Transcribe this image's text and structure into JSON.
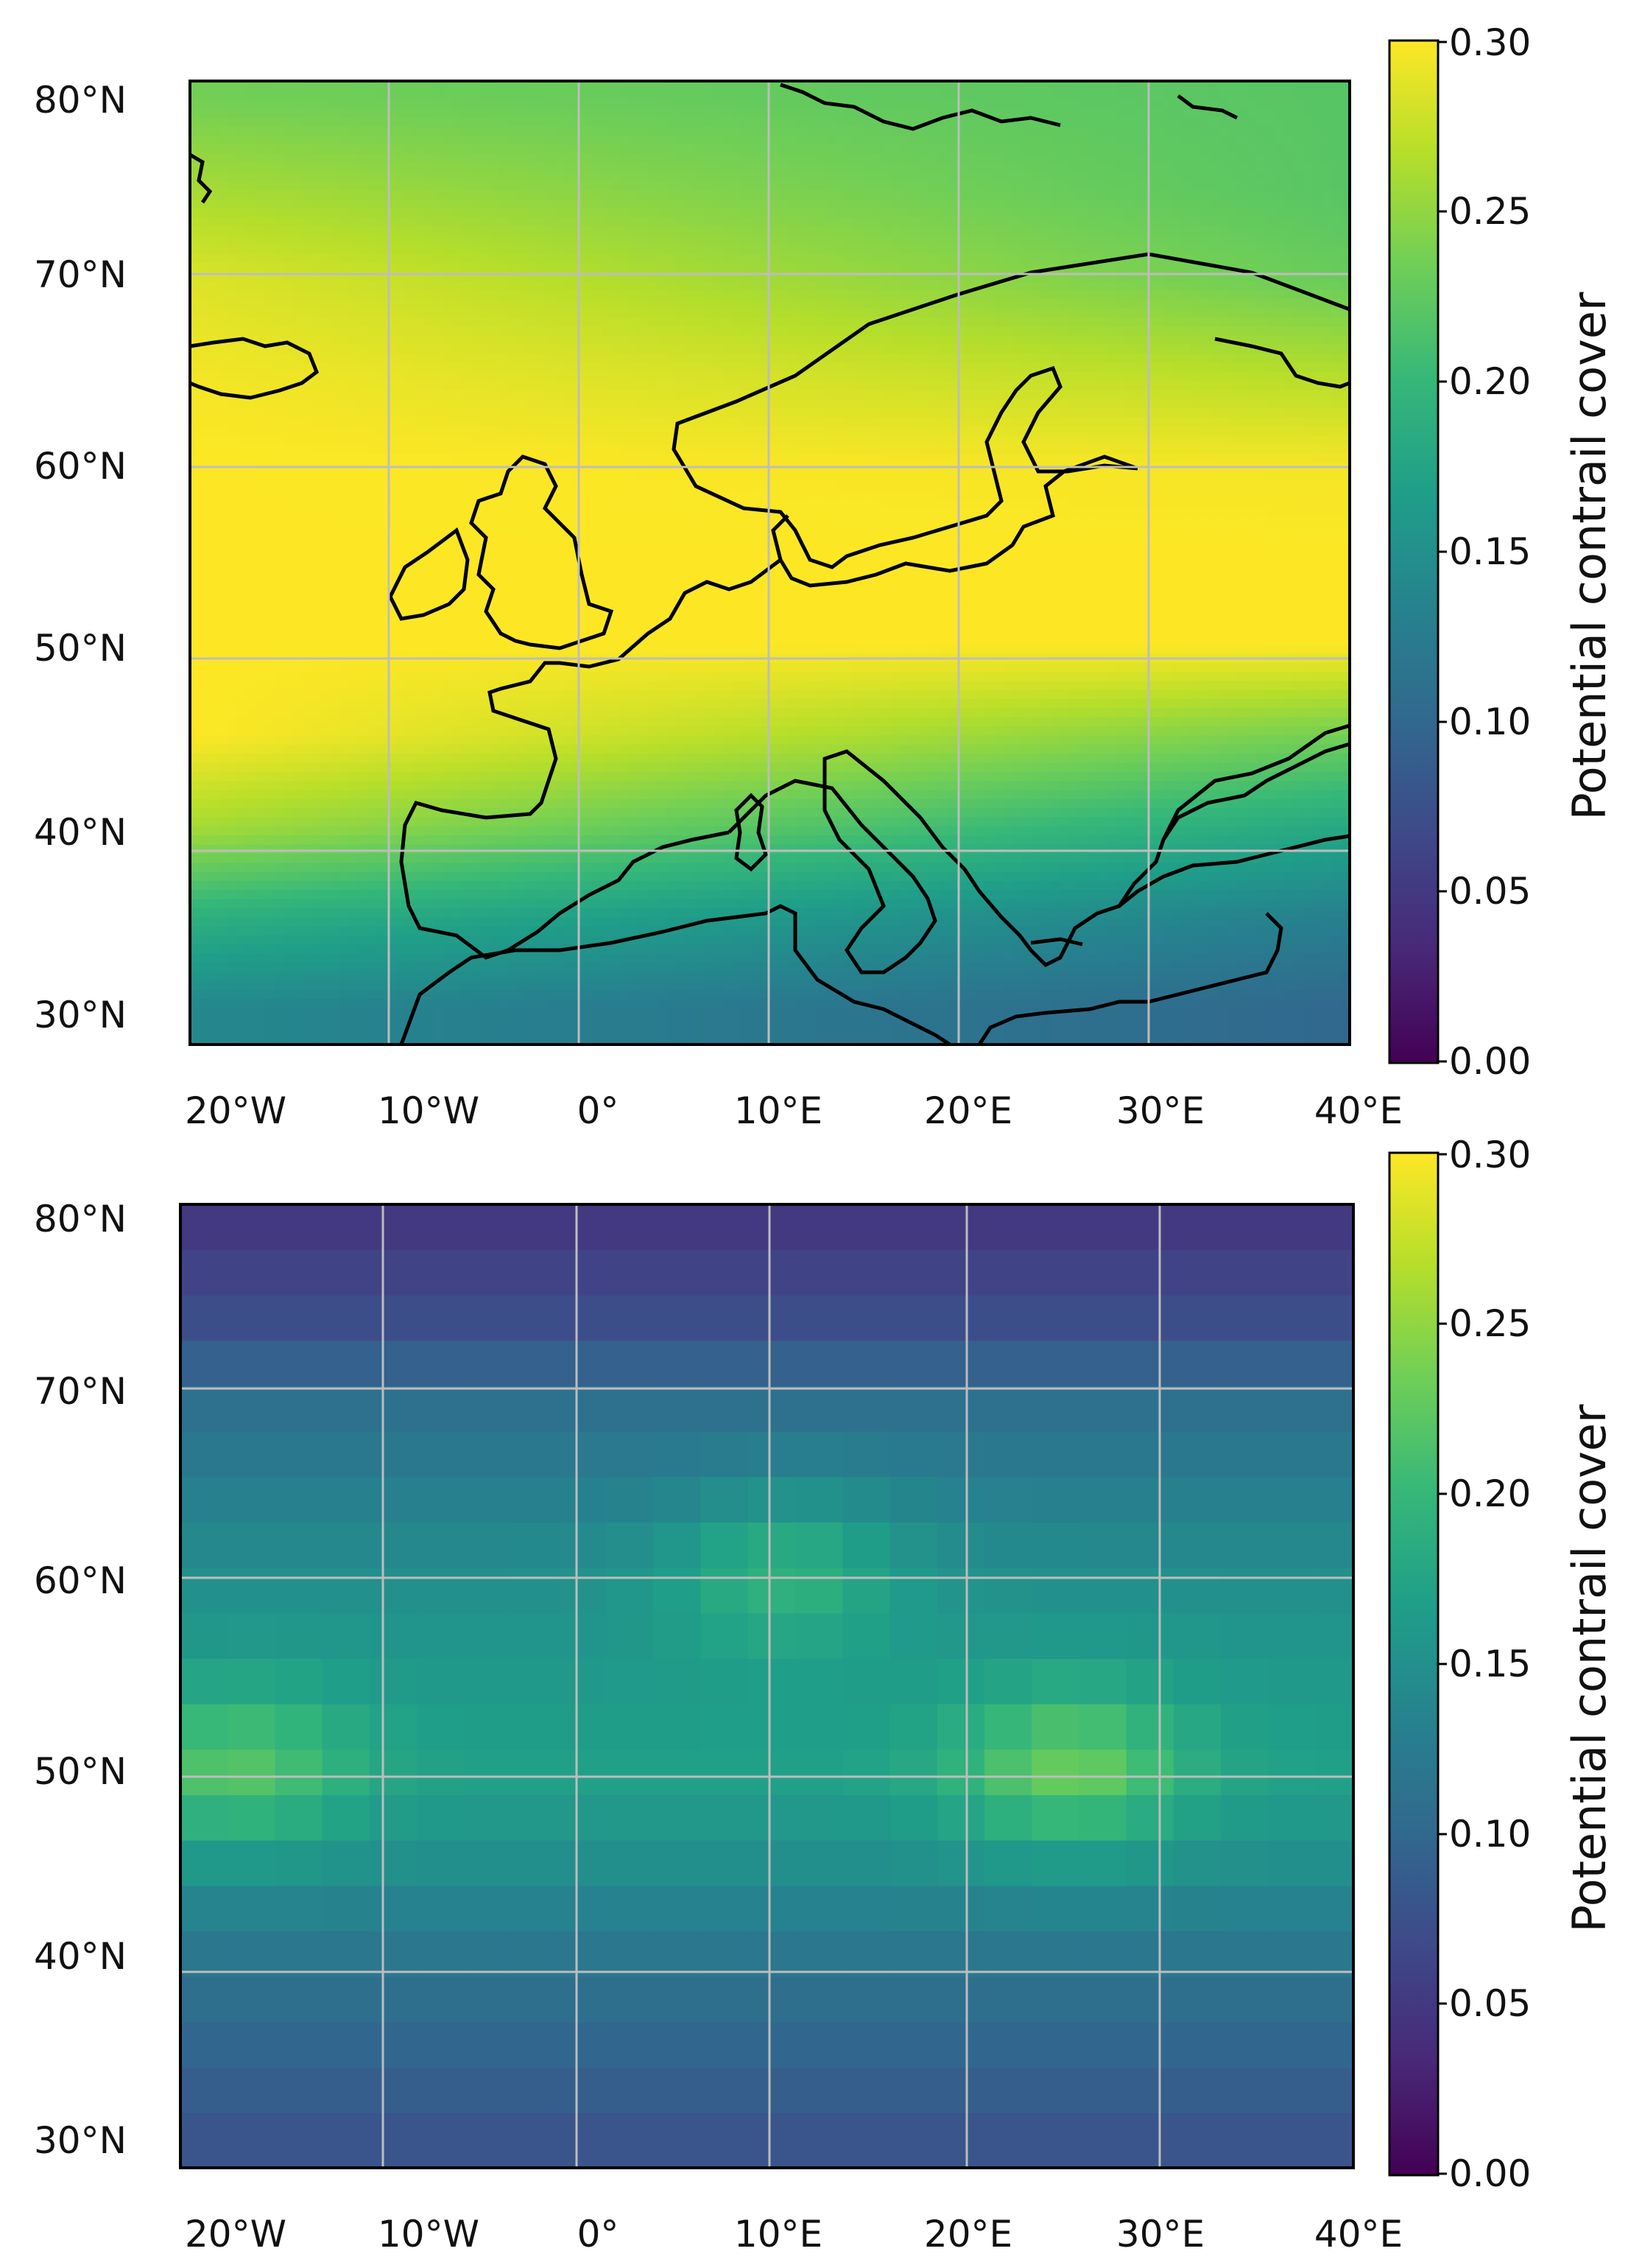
{
  "figure": {
    "lat_ticks": [
      "80°N",
      "70°N",
      "60°N",
      "50°N",
      "40°N",
      "30°N"
    ],
    "lon_ticks": [
      "20°W",
      "10°W",
      "0°",
      "10°E",
      "20°E",
      "30°E",
      "40°E"
    ],
    "colorbar_ticks": [
      "0.30",
      "0.25",
      "0.20",
      "0.15",
      "0.10",
      "0.05",
      "0.00"
    ],
    "colorbar_label": "Potential contrail cover",
    "colormap": "viridis",
    "colors": {
      "coastline": "#000000",
      "gridline": "#c0c0c0",
      "viridis": [
        "#440154",
        "#482878",
        "#3e4989",
        "#31688e",
        "#26828e",
        "#1f9e89",
        "#35b779",
        "#6ece58",
        "#b5de2b",
        "#fde725"
      ]
    }
  },
  "chart_data": [
    {
      "type": "heatmap",
      "name": "top-map",
      "xlim": [
        -22,
        40
      ],
      "ylim": [
        28,
        81
      ],
      "vlim": [
        0,
        0.3
      ],
      "grid": true,
      "colorbar_label": "Potential contrail cover",
      "x_ticks": [
        -20,
        -10,
        0,
        10,
        20,
        30,
        40
      ],
      "y_ticks": [
        30,
        40,
        50,
        60,
        70,
        80
      ],
      "colorbar_ticks": [
        0.0,
        0.05,
        0.1,
        0.15,
        0.2,
        0.25,
        0.3
      ],
      "band_lat": [
        80,
        75,
        70,
        65,
        60,
        55,
        50,
        45,
        40,
        35,
        30
      ],
      "band_value_west": [
        0.235,
        0.26,
        0.285,
        0.295,
        0.3,
        0.3,
        0.3,
        0.3,
        0.26,
        0.19,
        0.14
      ],
      "band_value_east": [
        0.22,
        0.22,
        0.23,
        0.265,
        0.295,
        0.3,
        0.3,
        0.235,
        0.18,
        0.13,
        0.1
      ]
    },
    {
      "type": "heatmap",
      "name": "bottom-map",
      "xlim": [
        -22,
        40
      ],
      "ylim": [
        28,
        81
      ],
      "vlim": [
        0,
        0.3
      ],
      "grid": true,
      "colorbar_label": "Potential contrail cover",
      "x_ticks": [
        -20,
        -10,
        0,
        10,
        20,
        30,
        40
      ],
      "y_ticks": [
        30,
        40,
        50,
        60,
        70,
        80
      ],
      "colorbar_ticks": [
        0.0,
        0.05,
        0.1,
        0.15,
        0.2,
        0.25,
        0.3
      ],
      "cell_deg": 2.5,
      "base_lat": [
        80,
        75,
        70,
        65,
        60,
        55,
        50,
        45,
        40,
        35,
        30
      ],
      "base_value": [
        0.05,
        0.07,
        0.11,
        0.13,
        0.15,
        0.16,
        0.17,
        0.15,
        0.12,
        0.1,
        0.08
      ],
      "hotspots": [
        {
          "lon": -19,
          "lat": 50,
          "value": 0.22
        },
        {
          "lon": 25,
          "lat": 50,
          "value": 0.23
        },
        {
          "lon": 10,
          "lat": 61,
          "value": 0.19
        }
      ]
    }
  ]
}
